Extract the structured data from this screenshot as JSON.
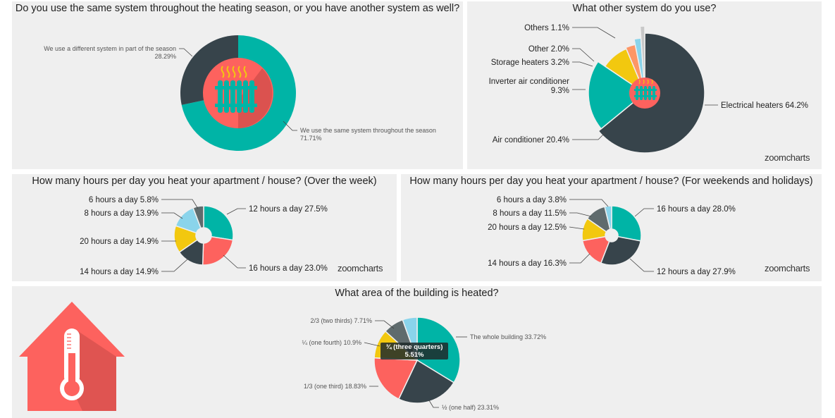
{
  "colors": {
    "teal": "#00b4a6",
    "dark": "#37444b",
    "red": "#fd625e",
    "yellow": "#f2c80f",
    "lightblue": "#8ad4eb",
    "orange": "#fe9666",
    "lightgray": "#c8c8c8",
    "gray": "#5f6b6d",
    "panel_bg": "#efefef"
  },
  "brand": "zoomcharts",
  "chart_data": [
    {
      "id": "same-system",
      "type": "pie",
      "title": "Do you use the same system throughout the heating season, or you have another system as well?",
      "slices": [
        {
          "name": "We use the same system throughout the season",
          "value": 71.71,
          "pct_label": "71.71%",
          "color": "#00b4a6"
        },
        {
          "name": "We use a different system in part of the season",
          "value": 28.29,
          "pct_label": "28.29%",
          "color": "#37444b"
        }
      ]
    },
    {
      "id": "other-system",
      "type": "pie",
      "title": "What other system do you use?",
      "slices": [
        {
          "name": "Electrical heaters",
          "value": 64.2,
          "label": "Electrical heaters 64.2%",
          "color": "#37444b"
        },
        {
          "name": "Air conditioner",
          "value": 20.4,
          "label": "Air conditioner 20.4%",
          "color": "#00b4a6"
        },
        {
          "name": "Inverter air conditioner",
          "value": 9.3,
          "label": "Inverter air conditioner",
          "label2": "9.3%",
          "color": "#f2c80f"
        },
        {
          "name": "Storage heaters",
          "value": 3.2,
          "label": "Storage heaters 3.2%",
          "color": "#fe9666"
        },
        {
          "name": "Other",
          "value": 2.0,
          "label": "Other 2.0%",
          "color": "#8ad4eb"
        },
        {
          "name": "Others",
          "value": 1.1,
          "label": "Others 1.1%",
          "color": "#c8c8c8"
        }
      ]
    },
    {
      "id": "hours-week",
      "type": "pie",
      "title": "How many hours per day you heat your apartment / house? (Over the week)",
      "slices": [
        {
          "name": "12 hours a day",
          "value": 27.5,
          "label": "12 hours a day 27.5%",
          "color": "#00b4a6"
        },
        {
          "name": "16 hours a day",
          "value": 23.0,
          "label": "16 hours a day 23.0%",
          "color": "#fd625e"
        },
        {
          "name": "14 hours a day",
          "value": 14.9,
          "label": "14 hours a day 14.9%",
          "color": "#37444b"
        },
        {
          "name": "20 hours a day",
          "value": 14.9,
          "label": "20 hours a day 14.9%",
          "color": "#f2c80f"
        },
        {
          "name": "8 hours a day",
          "value": 13.9,
          "label": "8 hours a day 13.9%",
          "color": "#8ad4eb"
        },
        {
          "name": "6 hours a day",
          "value": 5.8,
          "label": "6 hours a day 5.8%",
          "color": "#5f6b6d"
        }
      ]
    },
    {
      "id": "hours-weekend",
      "type": "pie",
      "title": "How many hours per day you heat your apartment / house? (For weekends and holidays)",
      "slices": [
        {
          "name": "16 hours a day",
          "value": 28.0,
          "label": "16 hours a day 28.0%",
          "color": "#00b4a6"
        },
        {
          "name": "12 hours a day",
          "value": 27.9,
          "label": "12 hours a day 27.9%",
          "color": "#37444b"
        },
        {
          "name": "14 hours a day",
          "value": 16.3,
          "label": "14 hours a day 16.3%",
          "color": "#fd625e"
        },
        {
          "name": "20 hours a day",
          "value": 12.5,
          "label": "20 hours a day 12.5%",
          "color": "#f2c80f"
        },
        {
          "name": "8 hours a day",
          "value": 11.5,
          "label": "8 hours a day 11.5%",
          "color": "#5f6b6d"
        },
        {
          "name": "6 hours a day",
          "value": 3.8,
          "label": "6 hours a day 3.8%",
          "color": "#8ad4eb"
        }
      ]
    },
    {
      "id": "area-heated",
      "type": "pie",
      "title": "What area of the building is heated?",
      "slices": [
        {
          "name": "The whole building",
          "value": 33.72,
          "label": "The whole building 33.72%",
          "color": "#00b4a6"
        },
        {
          "name": "½ (one half)",
          "value": 23.31,
          "label": "½ (one half) 23.31%",
          "color": "#37444b"
        },
        {
          "name": "1/3 (one third)",
          "value": 18.83,
          "label": "1/3 (one third) 18.83%",
          "color": "#fd625e"
        },
        {
          "name": "¼ (one fourth)",
          "value": 10.9,
          "label": "¼ (one fourth) 10.9%",
          "color": "#f2c80f"
        },
        {
          "name": "2/3 (two thirds)",
          "value": 7.71,
          "label": "2/3 (two thirds) 7.71%",
          "color": "#5f6b6d"
        },
        {
          "name": "¾ (three quarters)",
          "value": 5.51,
          "label": "¾ (three quarters)",
          "label2": "5.51%",
          "color": "#8ad4eb"
        }
      ],
      "tooltip": {
        "label": "¾ (three quarters)",
        "value": "5.51%"
      }
    }
  ]
}
